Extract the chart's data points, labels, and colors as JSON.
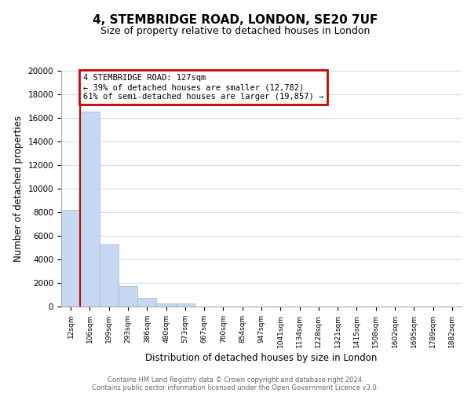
{
  "title": "4, STEMBRIDGE ROAD, LONDON, SE20 7UF",
  "subtitle": "Size of property relative to detached houses in London",
  "xlabel": "Distribution of detached houses by size in London",
  "ylabel": "Number of detached properties",
  "bar_labels": [
    "12sqm",
    "106sqm",
    "199sqm",
    "293sqm",
    "386sqm",
    "480sqm",
    "573sqm",
    "667sqm",
    "760sqm",
    "854sqm",
    "947sqm",
    "1041sqm",
    "1134sqm",
    "1228sqm",
    "1321sqm",
    "1415sqm",
    "1508sqm",
    "1602sqm",
    "1695sqm",
    "1789sqm",
    "1882sqm"
  ],
  "bar_heights": [
    8200,
    16500,
    5300,
    1750,
    750,
    300,
    250,
    0,
    0,
    0,
    0,
    0,
    0,
    0,
    0,
    0,
    0,
    0,
    0,
    0,
    0
  ],
  "bar_color": "#c6d9f0",
  "bar_edge_color": "#a0b8d8",
  "property_line_x": 1,
  "annotation_title": "4 STEMBRIDGE ROAD: 127sqm",
  "annotation_line1": "← 39% of detached houses are smaller (12,782)",
  "annotation_line2": "61% of semi-detached houses are larger (19,857) →",
  "annotation_box_color": "#ffffff",
  "annotation_box_edge": "#cc0000",
  "red_line_color": "#cc0000",
  "ylim": [
    0,
    20000
  ],
  "yticks": [
    0,
    2000,
    4000,
    6000,
    8000,
    10000,
    12000,
    14000,
    16000,
    18000,
    20000
  ],
  "grid_color": "#d0dce8",
  "footer1": "Contains HM Land Registry data © Crown copyright and database right 2024.",
  "footer2": "Contains public sector information licensed under the Open Government Licence v3.0."
}
